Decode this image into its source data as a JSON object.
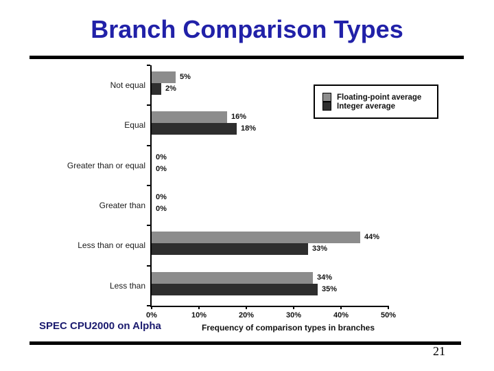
{
  "title": "Branch Comparison Types",
  "footer": {
    "source_note": "SPEC CPU2000 on Alpha",
    "page_number": "21"
  },
  "colors": {
    "title": "#2121a8",
    "source_note": "#1a1a6e",
    "floating_point_bar": "#8c8c8c",
    "integer_bar": "#2e2e2e",
    "rule": "#000000"
  },
  "chart_data": {
    "type": "bar",
    "orientation": "horizontal",
    "title": "",
    "xlabel": "Frequency of comparison types in branches",
    "ylabel": "",
    "categories": [
      "Not equal",
      "Equal",
      "Greater than or equal",
      "Greater than",
      "Less than or equal",
      "Less than"
    ],
    "series": [
      {
        "name": "Floating-point average",
        "color": "#8c8c8c",
        "values": [
          5,
          16,
          0,
          0,
          44,
          34
        ]
      },
      {
        "name": "Integer average",
        "color": "#2e2e2e",
        "values": [
          2,
          18,
          0,
          0,
          33,
          35
        ]
      }
    ],
    "value_suffix": "%",
    "data_labels": true,
    "x_ticks": [
      "0%",
      "10%",
      "20%",
      "30%",
      "40%",
      "50%"
    ],
    "xlim": [
      0,
      50
    ],
    "grid": false,
    "legend_position": "top-right"
  }
}
